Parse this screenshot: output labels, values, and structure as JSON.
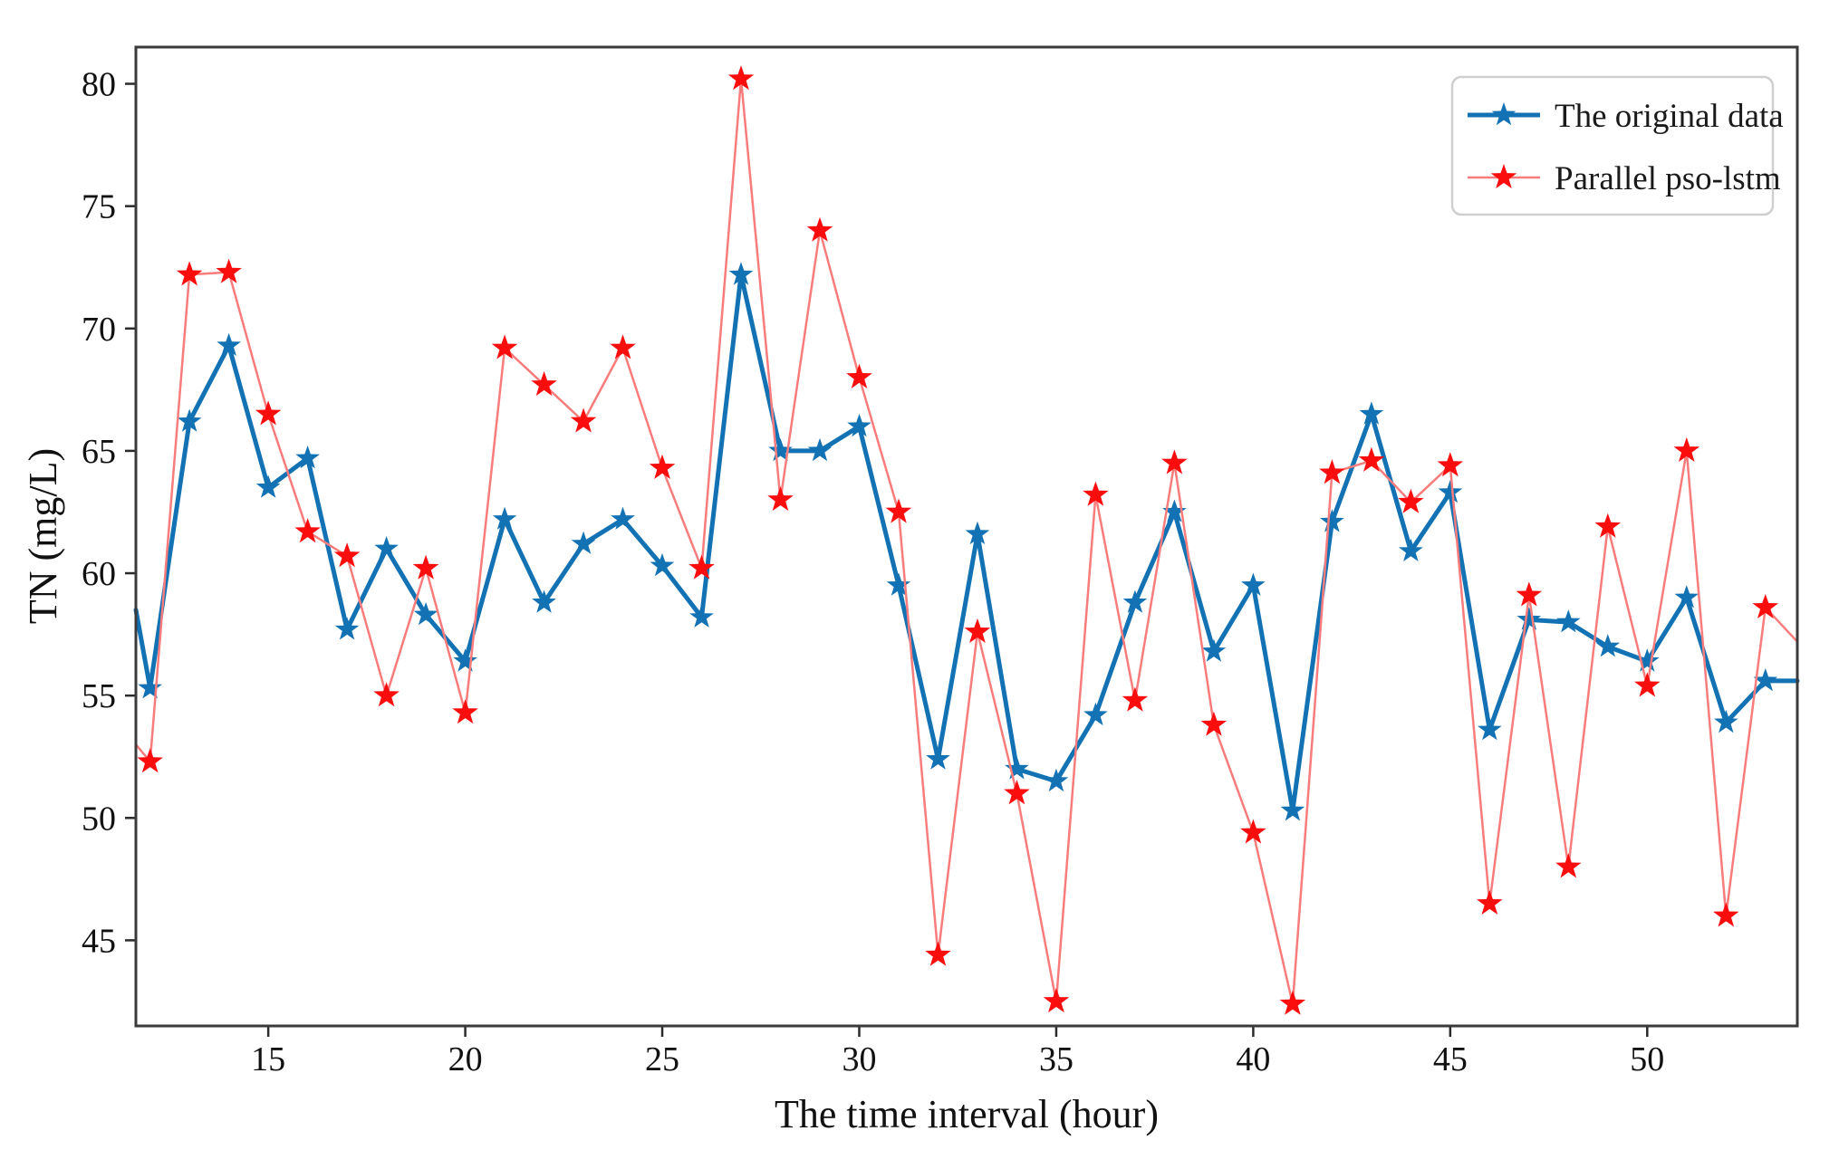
{
  "chart_data": {
    "type": "line",
    "title": "",
    "xlabel": "The time interval (hour)",
    "ylabel": "TN (mg/L)",
    "xlim": [
      11.64,
      53.81
    ],
    "ylim": [
      41.5,
      81.5
    ],
    "xticks": [
      15,
      20,
      25,
      30,
      35,
      40,
      45,
      50
    ],
    "yticks": [
      45,
      50,
      55,
      60,
      65,
      70,
      75,
      80
    ],
    "grid": false,
    "legend_position": "top-right",
    "x": [
      12,
      13,
      14,
      15,
      16,
      17,
      18,
      19,
      20,
      21,
      22,
      23,
      24,
      25,
      26,
      27,
      28,
      29,
      30,
      31,
      32,
      33,
      34,
      35,
      36,
      37,
      38,
      39,
      40,
      41,
      42,
      43,
      44,
      45,
      46,
      47,
      48,
      49,
      50,
      51,
      52,
      53
    ],
    "series": [
      {
        "name": "The original data",
        "color": "#1272b4",
        "line_color": "#1272b4",
        "line_width": 5,
        "marker": "star",
        "marker_size": 14,
        "values": [
          55.3,
          66.2,
          69.3,
          63.5,
          64.7,
          57.7,
          61.0,
          58.3,
          56.4,
          62.2,
          58.8,
          61.2,
          62.2,
          60.3,
          58.2,
          72.2,
          65.0,
          65.0,
          66.0,
          59.5,
          52.4,
          61.6,
          52.0,
          51.5,
          54.2,
          58.8,
          62.5,
          56.8,
          59.5,
          50.3,
          62.1,
          66.5,
          60.9,
          63.3,
          53.6,
          58.1,
          58.0,
          57.0,
          56.4,
          59.0,
          53.9,
          55.6
        ],
        "edge_clip_left": {
          "x": 11.64,
          "y": 58.5
        },
        "edge_clip_right": {
          "x": 53.81,
          "y": 55.6
        }
      },
      {
        "name": "Parallel pso-lstm",
        "color": "#fb0d0d",
        "line_color": "#f97c7c",
        "line_width": 2.5,
        "marker": "star",
        "marker_size": 15,
        "values": [
          52.3,
          72.2,
          72.3,
          66.5,
          61.7,
          60.7,
          55.0,
          60.2,
          54.3,
          69.2,
          67.7,
          66.2,
          69.2,
          64.3,
          60.2,
          80.2,
          63.0,
          74.0,
          68.0,
          62.5,
          44.4,
          57.6,
          51.0,
          42.5,
          63.2,
          54.8,
          64.5,
          53.8,
          49.4,
          42.4,
          64.1,
          64.6,
          62.9,
          64.4,
          46.5,
          59.1,
          48.0,
          61.9,
          55.4,
          65.0,
          46.0,
          58.6
        ],
        "edge_clip_left": {
          "x": 11.64,
          "y": 53.0
        },
        "edge_clip_right": {
          "x": 53.81,
          "y": 57.2
        }
      }
    ],
    "axis_color": "#3a3a3a",
    "legend_labels": [
      "The original data",
      "Parallel pso-lstm"
    ]
  }
}
